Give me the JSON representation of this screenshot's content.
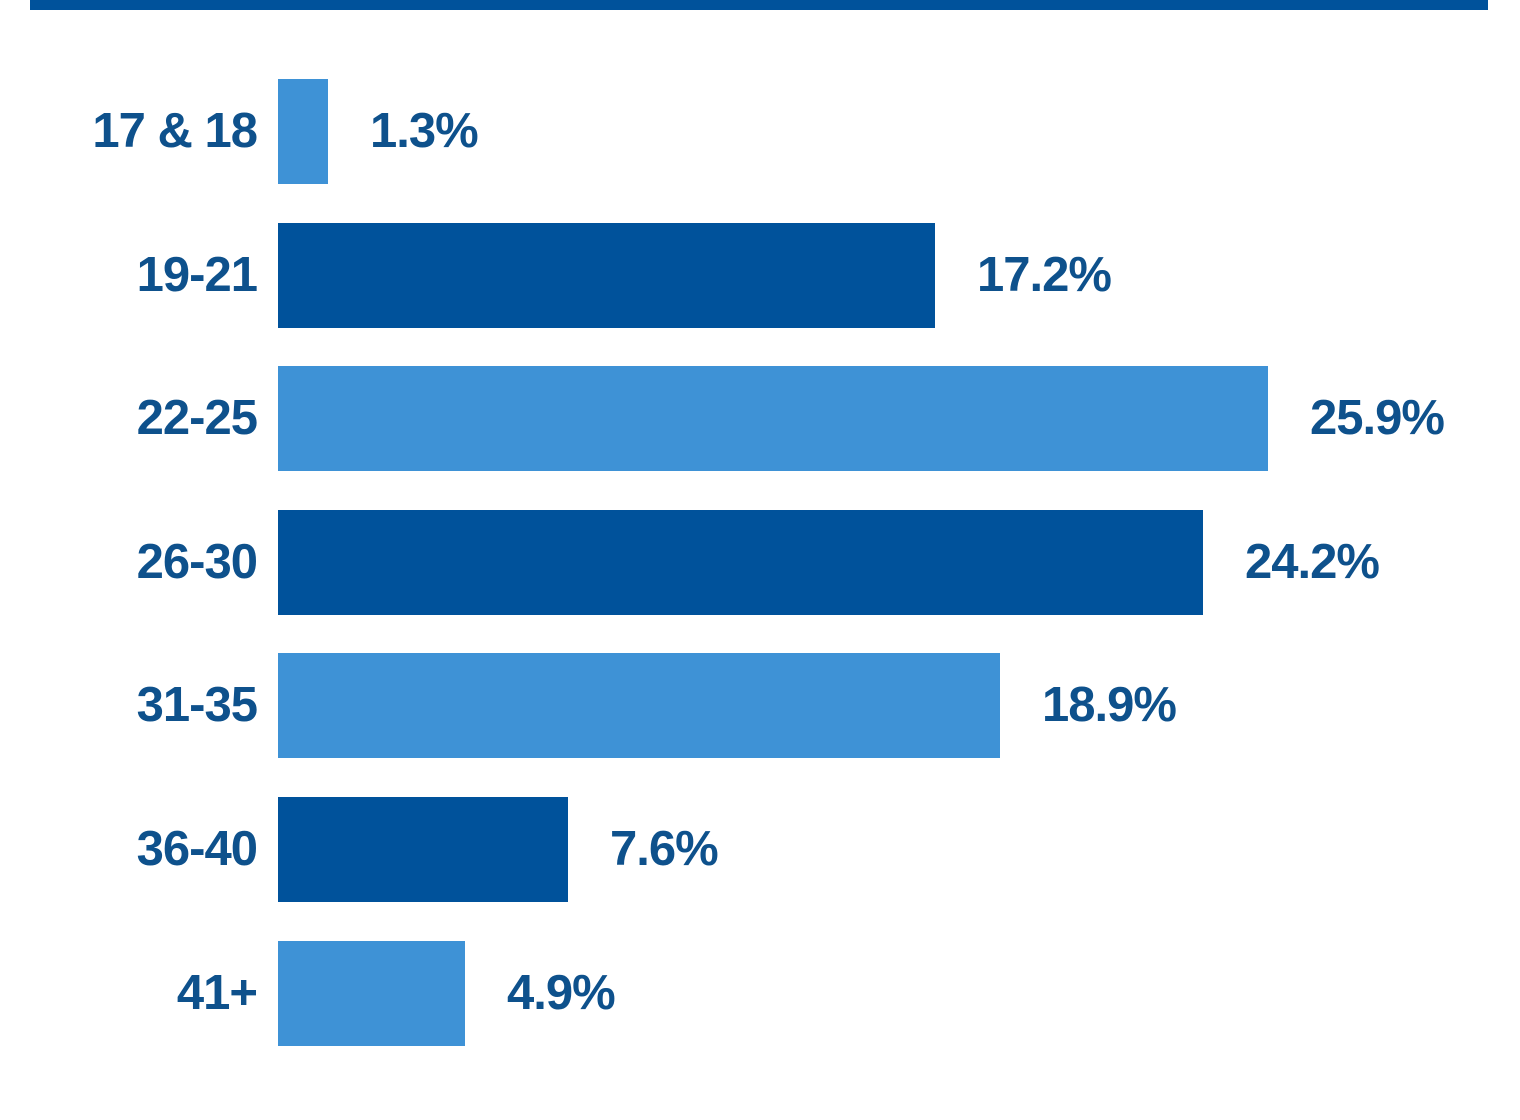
{
  "chart_data": {
    "type": "bar",
    "orientation": "horizontal",
    "categories": [
      "17 & 18",
      "19-21",
      "22-25",
      "26-30",
      "31-35",
      "36-40",
      "41+"
    ],
    "values": [
      1.3,
      17.2,
      25.9,
      24.2,
      18.9,
      7.6,
      4.9
    ],
    "value_labels": [
      "1.3%",
      "17.2%",
      "25.9%",
      "24.2%",
      "18.9%",
      "7.6%",
      "4.9%"
    ],
    "bar_color_sequence": [
      "light",
      "dark",
      "light",
      "dark",
      "light",
      "dark",
      "light"
    ],
    "colors": {
      "light_bar": "#3E92D6",
      "dark_bar": "#00529B",
      "label_text": "#0E518C",
      "background": "#FFFFFF"
    },
    "xlim": [
      0,
      26
    ],
    "grid": false,
    "legend": false,
    "axis_ticks_visible": false
  },
  "decor": {
    "top_strip_color": "#00529B"
  }
}
